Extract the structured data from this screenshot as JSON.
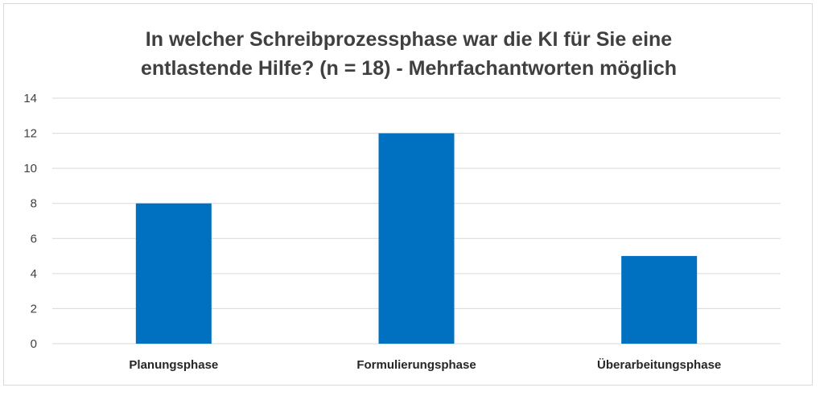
{
  "chart_data": {
    "type": "bar",
    "title_lines": [
      "In welcher Schreibprozessphase war die KI für Sie eine",
      "entlastende Hilfe?  (n = 18) - Mehrfachantworten möglich"
    ],
    "categories": [
      "Planungsphase",
      "Formulierungsphase",
      "Überarbeitungsphase"
    ],
    "values": [
      8,
      12,
      5
    ],
    "ylim": [
      0,
      14
    ],
    "yticks": [
      "0",
      "2",
      "4",
      "6",
      "8",
      "10",
      "12",
      "14"
    ],
    "grid": true,
    "bar_color": "#0070c0",
    "grid_color": "#d9d9d9"
  }
}
